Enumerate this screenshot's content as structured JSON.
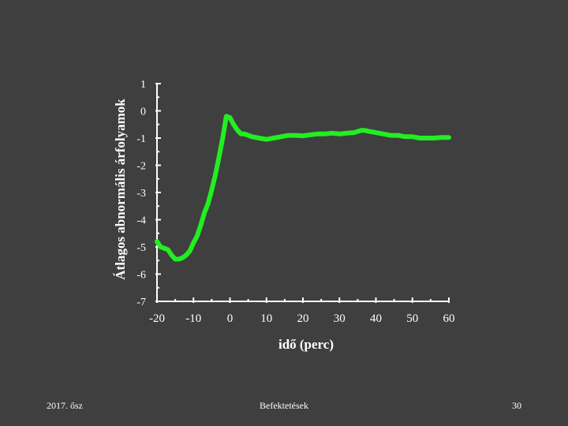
{
  "chart_data": {
    "type": "line",
    "title": "",
    "xlabel": "idő (perc)",
    "ylabel": "Átlagos abnormális árfolyamok",
    "xlim": [
      -20,
      60
    ],
    "ylim": [
      -7,
      1
    ],
    "x_ticks": [
      "-20",
      "-10",
      "0",
      "10",
      "20",
      "30",
      "40",
      "50",
      "60"
    ],
    "y_ticks": [
      "1",
      "0",
      "-1",
      "-2",
      "-3",
      "-4",
      "-5",
      "-6",
      "-7"
    ],
    "legend": "none",
    "grid": false,
    "series": [
      {
        "color": "#22ee22",
        "x": [
          -20,
          -19,
          -17,
          -16,
          -15,
          -14,
          -13,
          -12,
          -11,
          -10,
          -9,
          -8,
          -7,
          -6,
          -5,
          -4,
          -3,
          -2,
          -1,
          0,
          1,
          2,
          3,
          4,
          5,
          6,
          8,
          10,
          12,
          14,
          16,
          18,
          20,
          22,
          24,
          26,
          28,
          30,
          32,
          34,
          36,
          37,
          38,
          40,
          42,
          44,
          46,
          48,
          50,
          52,
          54,
          56,
          58,
          60
        ],
        "y": [
          -4.8,
          -5.0,
          -5.1,
          -5.3,
          -5.45,
          -5.45,
          -5.4,
          -5.3,
          -5.15,
          -4.85,
          -4.6,
          -4.2,
          -3.75,
          -3.4,
          -2.9,
          -2.35,
          -1.7,
          -1.0,
          -0.2,
          -0.25,
          -0.5,
          -0.7,
          -0.85,
          -0.85,
          -0.9,
          -0.95,
          -1.0,
          -1.05,
          -1.0,
          -0.95,
          -0.9,
          -0.9,
          -0.92,
          -0.88,
          -0.85,
          -0.85,
          -0.82,
          -0.85,
          -0.82,
          -0.8,
          -0.72,
          -0.72,
          -0.75,
          -0.8,
          -0.85,
          -0.9,
          -0.9,
          -0.95,
          -0.95,
          -1.0,
          -1.0,
          -1.0,
          -0.98,
          -0.98
        ]
      }
    ]
  },
  "footer": {
    "left": "2017. ősz",
    "center": "Befektetések",
    "right": "30"
  }
}
